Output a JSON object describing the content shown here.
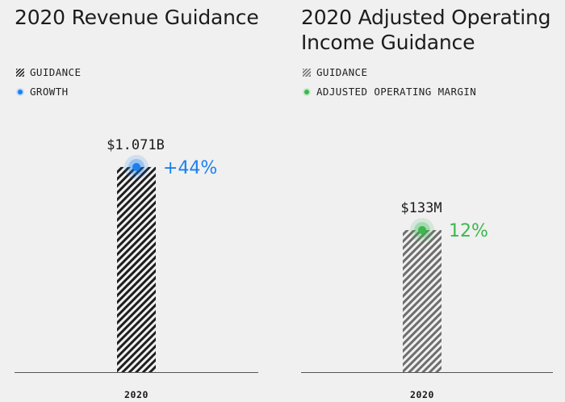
{
  "chart_data": [
    {
      "type": "bar",
      "title": "2020 Revenue Guidance",
      "categories": [
        "2020"
      ],
      "series": [
        {
          "name": "GUIDANCE",
          "values": [
            1.071
          ],
          "labels": [
            "$1.071B"
          ]
        }
      ],
      "growth": {
        "name": "GROWTH",
        "values": [
          "+44%"
        ],
        "color": "#1a80f0"
      },
      "legend": [
        {
          "name": "GUIDANCE"
        },
        {
          "name": "GROWTH"
        }
      ],
      "ylim": [
        0,
        1.45
      ],
      "bar_color": "#1e1e1e",
      "legend_position": "top-left"
    },
    {
      "type": "bar",
      "title": "2020 Adjusted Operating Income Guidance",
      "categories": [
        "2020"
      ],
      "series": [
        {
          "name": "GUIDANCE",
          "values": [
            133
          ],
          "labels": [
            "$133M"
          ]
        }
      ],
      "growth": {
        "name": "ADJUSTED OPERATING MARGIN",
        "values": [
          "12%"
        ],
        "color": "#3cb84e"
      },
      "legend": [
        {
          "name": "GUIDANCE"
        },
        {
          "name": "ADJUSTED OPERATING MARGIN"
        }
      ],
      "ylim": [
        0,
        260
      ],
      "bar_color": "#6e6e6e",
      "legend_position": "top-left"
    }
  ]
}
